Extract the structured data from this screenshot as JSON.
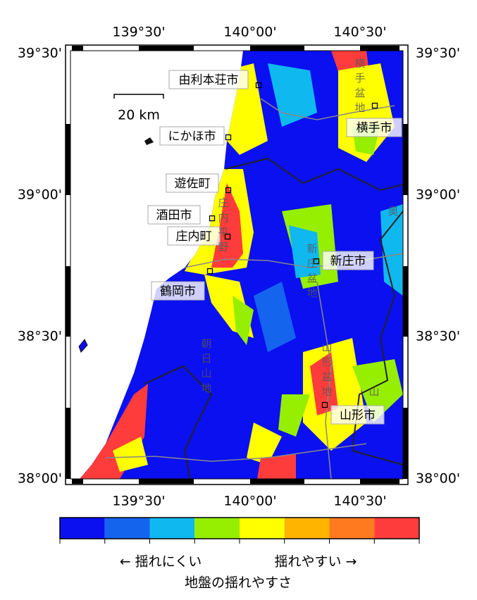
{
  "title": "地盤の揺れやすさ",
  "lon_labels": [
    "139°30'",
    "140°00'",
    "140°30'"
  ],
  "lat_labels": [
    "39°30'",
    "39°00'",
    "38°30'",
    "38°00'"
  ],
  "scale_bar": "20 km",
  "cities": [
    "由利本荘市",
    "にかほ市",
    "遊佐町",
    "酒田市",
    "庄内町",
    "鶴岡市",
    "横手市",
    "新庄市",
    "山形市"
  ],
  "regions": [
    "庄内平野",
    "横手盆地",
    "新庄盆地",
    "山形盆地",
    "朝日山地",
    "奥",
    "山"
  ],
  "legend": {
    "low": "← 揺れにくい",
    "high": "揺れやすい →",
    "colors": [
      "#0a10f0",
      "#1464ee",
      "#10b8f0",
      "#96ee00",
      "#ffff00",
      "#ffb400",
      "#ff7a1e",
      "#ff3c3c"
    ]
  }
}
